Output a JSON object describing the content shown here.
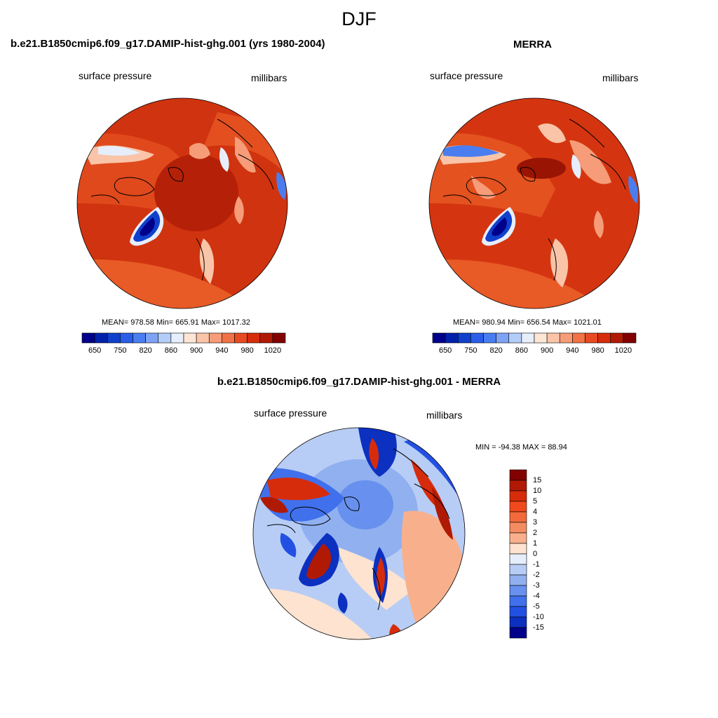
{
  "page": {
    "title": "DJF"
  },
  "panels": [
    {
      "title": "b.e21.B1850cmip6.f09_g17.DAMIP-hist-ghg.001 (yrs 1980-2004)",
      "variable": "surface pressure",
      "units": "millibars",
      "stats": "MEAN= 978.58  Min= 665.91  Max= 1017.32",
      "mean": 978.58,
      "min": 665.91,
      "max": 1017.32
    },
    {
      "title": "MERRA",
      "variable": "surface pressure",
      "units": "millibars",
      "stats": "MEAN= 980.94  Min= 656.54  Max= 1021.01",
      "mean": 980.94,
      "min": 656.54,
      "max": 1021.01
    },
    {
      "title": "b.e21.B1850cmip6.f09_g17.DAMIP-hist-ghg.001 - MERRA",
      "variable": "surface pressure",
      "units": "millibars",
      "stats": "MIN = -94.38 MAX =  88.94",
      "min": -94.38,
      "max": 88.94
    }
  ],
  "colorbars": {
    "absolute": {
      "colors": [
        "#00008b",
        "#0022aa",
        "#1040cc",
        "#2a5ee8",
        "#4a7ef0",
        "#7ea2f4",
        "#b4ccf8",
        "#e6eefb",
        "#fde6d6",
        "#f9c4a8",
        "#f69c78",
        "#f07246",
        "#e84a22",
        "#d62c0c",
        "#b01a04",
        "#820000"
      ],
      "ticks": [
        "650",
        "750",
        "820",
        "860",
        "900",
        "940",
        "980",
        "1020"
      ]
    },
    "difference": {
      "colors": [
        "#820000",
        "#b01a04",
        "#d62c0c",
        "#f04a1c",
        "#f26a3c",
        "#f48c62",
        "#f8b08c",
        "#fde3d0",
        "#e6eefb",
        "#b8cdf5",
        "#90b0f0",
        "#6890ee",
        "#4070ec",
        "#2250e2",
        "#0c30c0",
        "#00008b"
      ],
      "ticks": [
        "15",
        "10",
        "5",
        "4",
        "3",
        "2",
        "1",
        "0",
        "-1",
        "-2",
        "-3",
        "-4",
        "-5",
        "-10",
        "-15"
      ]
    }
  }
}
